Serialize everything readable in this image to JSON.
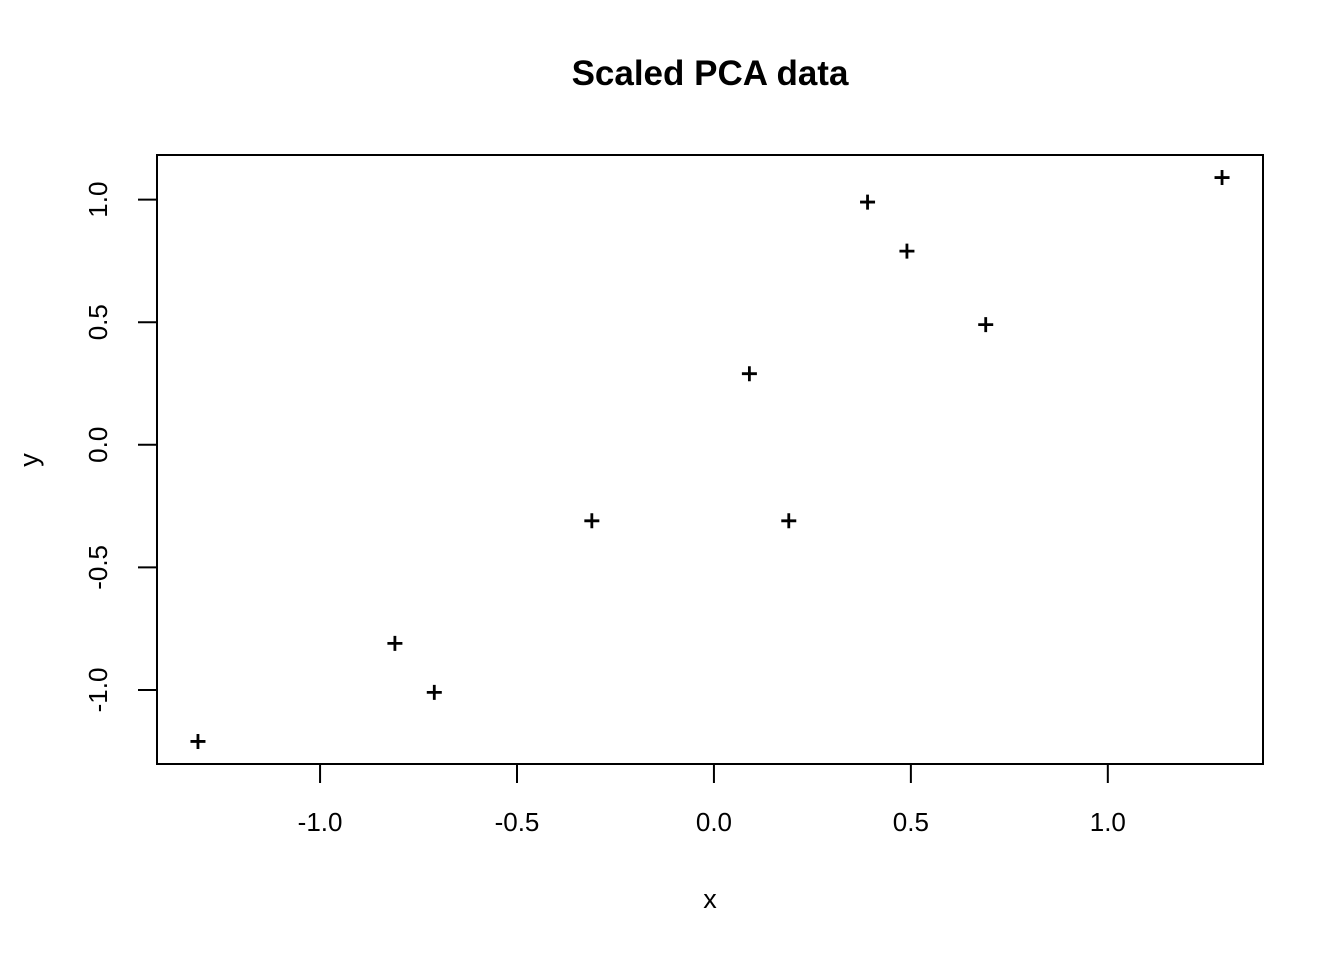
{
  "title": "Scaled PCA data",
  "colors": {
    "foreground": "#000000",
    "background": "#ffffff"
  },
  "chart_data": {
    "type": "scatter",
    "title": "Scaled PCA data",
    "xlabel": "x",
    "ylabel": "y",
    "marker": "plus-sign",
    "grid": false,
    "legend": "none",
    "x_range": [
      -1.414,
      1.394
    ],
    "y_range": [
      -1.302,
      1.182
    ],
    "x_ticks": [
      -1.0,
      -0.5,
      0.0,
      0.5,
      1.0
    ],
    "x_tick_labels": [
      "-1.0",
      "-0.5",
      "0.0",
      "0.5",
      "1.0"
    ],
    "y_ticks": [
      -1.0,
      -0.5,
      0.0,
      0.5,
      1.0
    ],
    "y_tick_labels": [
      "-1.0",
      "-0.5",
      "0.0",
      "0.5",
      "1.0"
    ],
    "points": [
      {
        "x": 0.69,
        "y": 0.49
      },
      {
        "x": -1.31,
        "y": -1.21
      },
      {
        "x": 0.39,
        "y": 0.99
      },
      {
        "x": 0.09,
        "y": 0.29
      },
      {
        "x": 1.29,
        "y": 1.09
      },
      {
        "x": 0.49,
        "y": 0.79
      },
      {
        "x": 0.19,
        "y": -0.31
      },
      {
        "x": -0.81,
        "y": -0.81
      },
      {
        "x": -0.31,
        "y": -0.31
      },
      {
        "x": -0.71,
        "y": -1.01
      }
    ]
  }
}
